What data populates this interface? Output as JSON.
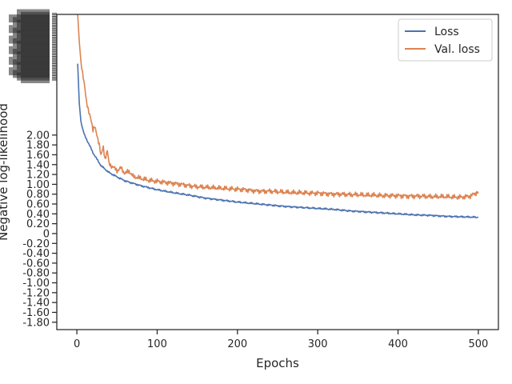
{
  "chart_data": {
    "type": "line",
    "title": "",
    "xlabel": "Epochs",
    "ylabel": "Negative log-likelihood",
    "xlim": [
      -25,
      525
    ],
    "ylim": [
      -1.95,
      4.45
    ],
    "x_ticks": [
      0,
      100,
      200,
      300,
      400,
      500
    ],
    "y_ticks": [
      {
        "v": -1.8,
        "label": "-1.80"
      },
      {
        "v": -1.6,
        "label": "-1.60"
      },
      {
        "v": -1.4,
        "label": "-1.40"
      },
      {
        "v": -1.2,
        "label": "-1.20"
      },
      {
        "v": -1.0,
        "label": "-1.00"
      },
      {
        "v": -0.8,
        "label": "-0.80"
      },
      {
        "v": -0.6,
        "label": "-0.60"
      },
      {
        "v": -0.4,
        "label": "-0.40"
      },
      {
        "v": -0.2,
        "label": "-0.20"
      },
      {
        "v": 0,
        "label": "0"
      },
      {
        "v": 0.2,
        "label": "0.20"
      },
      {
        "v": 0.4,
        "label": "0.40"
      },
      {
        "v": 0.6,
        "label": "0.60"
      },
      {
        "v": 0.8,
        "label": "0.80"
      },
      {
        "v": 1.0,
        "label": "1.00"
      },
      {
        "v": 1.2,
        "label": "1.20"
      },
      {
        "v": 1.4,
        "label": "1.40"
      },
      {
        "v": 1.6,
        "label": "1.60"
      },
      {
        "v": 1.8,
        "label": "1.80"
      },
      {
        "v": 2.0,
        "label": "2.00"
      }
    ],
    "y_ticks_upper_note": "tick labels above 2.00 overlap into an unreadable stack",
    "grid": false,
    "legend_position": "upper-right",
    "series": [
      {
        "name": "Loss",
        "color": "#4c72b0",
        "x": [
          1,
          3,
          5,
          8,
          10,
          15,
          20,
          25,
          30,
          40,
          50,
          60,
          70,
          80,
          90,
          100,
          120,
          140,
          160,
          180,
          200,
          220,
          240,
          260,
          280,
          300,
          320,
          340,
          360,
          380,
          400,
          420,
          440,
          460,
          480,
          500
        ],
        "y": [
          3.45,
          2.65,
          2.28,
          2.08,
          1.98,
          1.82,
          1.64,
          1.51,
          1.38,
          1.24,
          1.15,
          1.07,
          1.02,
          0.97,
          0.93,
          0.89,
          0.83,
          0.78,
          0.72,
          0.68,
          0.64,
          0.61,
          0.58,
          0.55,
          0.53,
          0.51,
          0.49,
          0.46,
          0.44,
          0.42,
          0.4,
          0.38,
          0.37,
          0.35,
          0.34,
          0.33
        ]
      },
      {
        "name": "Val. loss",
        "color": "#dd8452",
        "x": [
          1,
          3,
          5,
          8,
          10,
          12,
          15,
          18,
          20,
          22,
          25,
          28,
          30,
          33,
          35,
          38,
          40,
          45,
          50,
          55,
          60,
          65,
          70,
          80,
          90,
          100,
          110,
          120,
          130,
          140,
          150,
          160,
          170,
          180,
          190,
          200,
          210,
          220,
          230,
          240,
          250,
          260,
          270,
          280,
          290,
          300,
          310,
          320,
          330,
          340,
          350,
          360,
          370,
          380,
          390,
          400,
          410,
          420,
          430,
          440,
          450,
          460,
          470,
          480,
          490,
          500
        ],
        "y": [
          4.45,
          3.9,
          3.5,
          3.15,
          2.95,
          2.7,
          2.45,
          2.28,
          2.12,
          2.18,
          1.98,
          1.82,
          1.58,
          1.75,
          1.52,
          1.68,
          1.42,
          1.35,
          1.28,
          1.33,
          1.22,
          1.27,
          1.16,
          1.12,
          1.08,
          1.06,
          1.04,
          1.02,
          1.0,
          0.97,
          0.95,
          0.94,
          0.93,
          0.92,
          0.91,
          0.9,
          0.89,
          0.87,
          0.86,
          0.86,
          0.85,
          0.84,
          0.83,
          0.83,
          0.82,
          0.82,
          0.81,
          0.8,
          0.8,
          0.79,
          0.79,
          0.78,
          0.78,
          0.77,
          0.77,
          0.77,
          0.76,
          0.76,
          0.76,
          0.75,
          0.75,
          0.75,
          0.74,
          0.74,
          0.76,
          0.85
        ]
      }
    ]
  }
}
